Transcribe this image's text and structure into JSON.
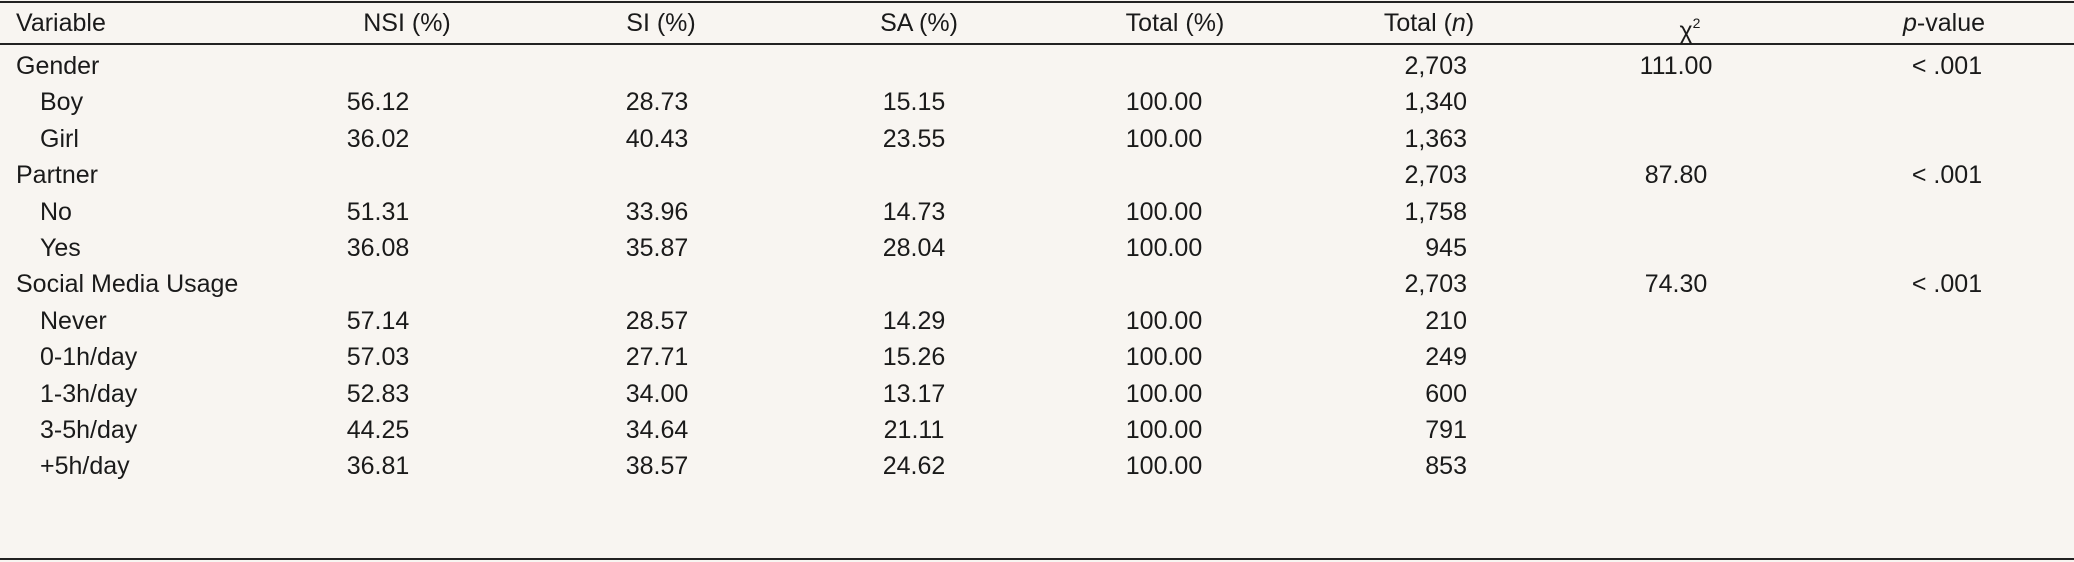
{
  "table": {
    "header": [
      [
        "Variable"
      ],
      [
        "NSI (%)"
      ],
      [
        "SI (%)"
      ],
      [
        "SA (%)"
      ],
      [
        "Total (%)"
      ],
      [
        "Total (",
        "n",
        ")"
      ],
      [
        "χ",
        "2"
      ],
      [
        "p",
        "-value"
      ]
    ],
    "rows": [
      [
        "Gender",
        null,
        null,
        null,
        null,
        "2,703",
        "111.00",
        "< .001"
      ],
      [
        "Boy",
        "56.12",
        "28.73",
        "15.15",
        "100.00",
        "1,340",
        null,
        null
      ],
      [
        "Girl",
        "36.02",
        "40.43",
        "23.55",
        "100.00",
        "1,363",
        null,
        null
      ],
      [
        "Partner",
        null,
        null,
        null,
        null,
        "2,703",
        "87.80",
        "< .001"
      ],
      [
        "No",
        "51.31",
        "33.96",
        "14.73",
        "100.00",
        "1,758",
        null,
        null
      ],
      [
        "Yes",
        "36.08",
        "35.87",
        "28.04",
        "100.00",
        "945",
        null,
        null
      ],
      [
        "Social Media Usage",
        null,
        null,
        null,
        null,
        "2,703",
        "74.30",
        "< .001"
      ],
      [
        "Never",
        "57.14",
        "28.57",
        "14.29",
        "100.00",
        "210",
        null,
        null
      ],
      [
        "0-1h/day",
        "57.03",
        "27.71",
        "15.26",
        "100.00",
        "249",
        null,
        null
      ],
      [
        "1-3h/day",
        "52.83",
        "34.00",
        "13.17",
        "100.00",
        "600",
        null,
        null
      ],
      [
        "3-5h/day",
        "44.25",
        "34.64",
        "21.11",
        "100.00",
        "791",
        null,
        null
      ],
      [
        "+5h/day",
        "36.81",
        "38.57",
        "24.62",
        "100.00",
        "853",
        null,
        null
      ]
    ]
  }
}
